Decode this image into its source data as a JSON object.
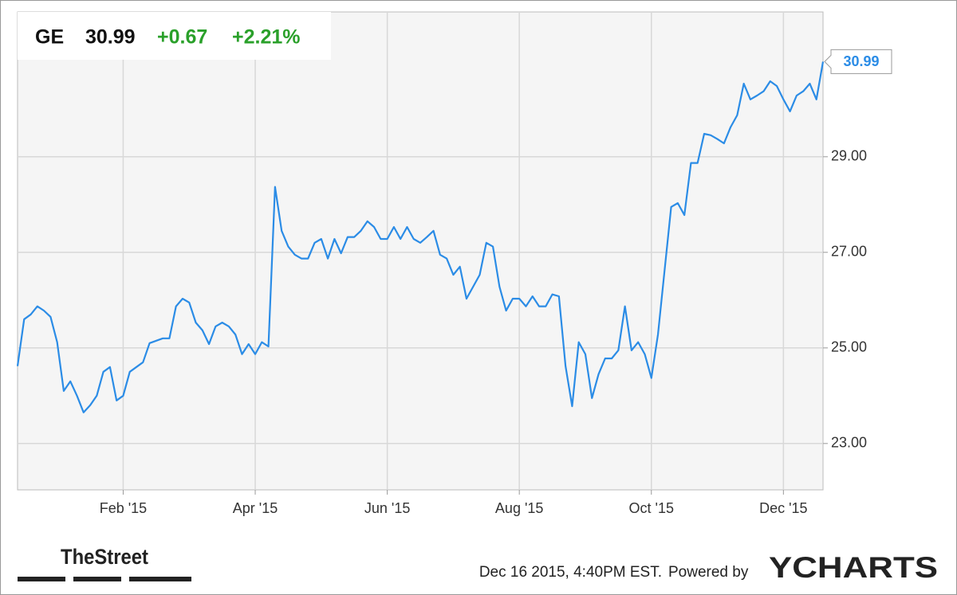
{
  "chart_data": {
    "type": "line",
    "header": {
      "symbol": "GE",
      "price": "30.99",
      "change": "+0.67",
      "change_pct": "+2.21%"
    },
    "end_label": "30.99",
    "categories": [
      null,
      null,
      null,
      null,
      null,
      null,
      null,
      null,
      null,
      null,
      null,
      null,
      null,
      null,
      null,
      null,
      "Feb '15",
      null,
      null,
      null,
      null,
      null,
      null,
      null,
      null,
      null,
      null,
      null,
      null,
      null,
      null,
      null,
      null,
      null,
      null,
      null,
      "Apr '15",
      null,
      null,
      null,
      null,
      null,
      null,
      null,
      null,
      null,
      null,
      null,
      null,
      null,
      null,
      null,
      null,
      null,
      null,
      null,
      "Jun '15",
      null,
      null,
      null,
      null,
      null,
      null,
      null,
      null,
      null,
      null,
      null,
      null,
      null,
      null,
      null,
      null,
      null,
      null,
      null,
      "Aug '15",
      null,
      null,
      null,
      null,
      null,
      null,
      null,
      null,
      null,
      null,
      null,
      null,
      null,
      null,
      null,
      null,
      null,
      null,
      null,
      "Oct '15",
      null,
      null,
      null,
      null,
      null,
      null,
      null,
      null,
      null,
      null,
      null,
      null,
      null,
      null,
      null,
      null,
      null,
      null,
      null,
      "Dec '15",
      null,
      null,
      null,
      null,
      null,
      null
    ],
    "values": [
      24.62,
      25.6,
      25.7,
      25.87,
      25.78,
      25.65,
      25.12,
      24.1,
      24.3,
      24.0,
      23.65,
      23.8,
      24.0,
      24.5,
      24.6,
      23.9,
      24.0,
      24.5,
      24.6,
      24.7,
      25.1,
      25.15,
      25.2,
      25.2,
      25.87,
      26.03,
      25.95,
      25.53,
      25.37,
      25.08,
      25.45,
      25.53,
      25.45,
      25.28,
      24.87,
      25.08,
      24.87,
      25.12,
      25.03,
      28.37,
      27.45,
      27.12,
      26.95,
      26.87,
      26.87,
      27.2,
      27.28,
      26.87,
      27.28,
      26.98,
      27.32,
      27.32,
      27.45,
      27.65,
      27.53,
      27.28,
      27.28,
      27.53,
      27.28,
      27.53,
      27.28,
      27.2,
      27.32,
      27.45,
      26.95,
      26.87,
      26.53,
      26.7,
      26.03,
      26.28,
      26.53,
      27.2,
      27.12,
      26.28,
      25.78,
      26.03,
      26.03,
      25.87,
      26.08,
      25.87,
      25.87,
      26.12,
      26.08,
      24.62,
      23.78,
      25.12,
      24.87,
      23.95,
      24.45,
      24.78,
      24.78,
      24.95,
      25.87,
      24.95,
      25.12,
      24.87,
      24.37,
      25.28,
      26.62,
      27.95,
      28.03,
      27.78,
      28.87,
      28.87,
      29.48,
      29.45,
      29.37,
      29.28,
      29.62,
      29.87,
      30.53,
      30.2,
      30.28,
      30.37,
      30.58,
      30.48,
      30.2,
      29.95,
      30.28,
      30.37,
      30.53,
      30.2,
      30.99
    ],
    "color": "#2b8ce6",
    "ylim": [
      22.03,
      32.03
    ],
    "yticks": [
      {
        "value": 23,
        "label": "23.00"
      },
      {
        "value": 25,
        "label": "25.00"
      },
      {
        "value": 27,
        "label": "27.00"
      },
      {
        "value": 29,
        "label": "29.00"
      }
    ],
    "grid": true,
    "footer": {
      "brand": "TheStreet",
      "timestamp": "Dec 16 2015, 4:40PM EST.",
      "powered": "Powered by",
      "provider": "YCHARTS"
    }
  }
}
